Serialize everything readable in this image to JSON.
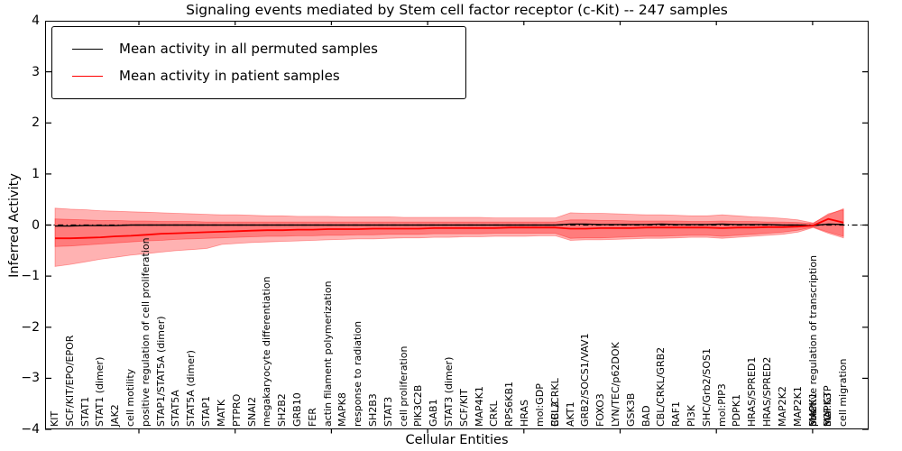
{
  "title": "Signaling events mediated by Stem cell factor receptor (c-Kit) -- 247 samples",
  "axes": {
    "ylabel": "Inferred Activity",
    "xlabel": "Cellular Entities",
    "ytick_labels": [
      "4",
      "3",
      "2",
      "1",
      "0",
      "−1",
      "−2",
      "−3",
      "−4"
    ],
    "ylim": [
      -4,
      4
    ]
  },
  "legend": {
    "items": [
      {
        "label": "Mean activity in all permuted samples",
        "color": "#000000"
      },
      {
        "label": "Mean activity in patient samples",
        "color": "#ff0000"
      }
    ]
  },
  "colors": {
    "band_fill": "rgba(255,0,0,0.30)",
    "band_edge": "rgba(255,0,0,0.35)",
    "permuted_line": "#000000",
    "patient_line": "#ff0000",
    "zero_line": "#000000",
    "frame": "#000000"
  },
  "chart_data": {
    "type": "line",
    "title": "Signaling events mediated by Stem cell factor receptor (c-Kit) -- 247 samples",
    "xlabel": "Cellular Entities",
    "ylabel": "Inferred Activity",
    "ylim": [
      -4,
      4
    ],
    "yticks": [
      4,
      3,
      2,
      1,
      0,
      -1,
      -2,
      -3,
      -4
    ],
    "zero_line_style": "dash-dot",
    "legend_position": "upper left",
    "x_entities": [
      [
        "KIT"
      ],
      [
        "SCF/KIT/EPO/EPOR"
      ],
      [
        "STAT1"
      ],
      [
        "STAT1 (dimer)"
      ],
      [
        "JAK2"
      ],
      [
        "cell motility"
      ],
      [
        "positive regulation of cell proliferation"
      ],
      [
        "STAP1/STAT5A (dimer)"
      ],
      [
        "STAT5A"
      ],
      [
        "STAT5A (dimer)"
      ],
      [
        "STAP1"
      ],
      [
        "MATK"
      ],
      [
        "PTPRO"
      ],
      [
        "SNAI2"
      ],
      [
        "megakaryocyte differentiation"
      ],
      [
        "SH2B2"
      ],
      [
        "GRB10"
      ],
      [
        "FER"
      ],
      [
        "actin filament polymerization"
      ],
      [
        "MAPK8"
      ],
      [
        "response to radiation"
      ],
      [
        "SH2B3"
      ],
      [
        "STAT3"
      ],
      [
        "cell proliferation"
      ],
      [
        "PIK3C2B"
      ],
      [
        "GAB1"
      ],
      [
        "STAT3 (dimer)"
      ],
      [
        "SCF/KIT"
      ],
      [
        "MAP4K1"
      ],
      [
        "CRKL"
      ],
      [
        "RPS6KB1"
      ],
      [
        "HRAS"
      ],
      [
        "mol:GDP"
      ],
      [
        "CBL/CRKL",
        "BCL2"
      ],
      [
        "AKT1"
      ],
      [
        "GRB2/SOCS1/VAV1"
      ],
      [
        "FOXO3"
      ],
      [
        "LYN/TEC/p62DOK"
      ],
      [
        "GSK3B"
      ],
      [
        "BAD"
      ],
      [
        "CBL/CRKL/GRB2"
      ],
      [
        "RAF1"
      ],
      [
        "PI3K"
      ],
      [
        "SHC/Grb2/SOS1"
      ],
      [
        "mol:PIP3"
      ],
      [
        "PDPK1"
      ],
      [
        "HRAS/SPRED1"
      ],
      [
        "HRAS/SPRED2"
      ],
      [
        "MAP2K2"
      ],
      [
        "MAP2K1"
      ],
      [
        "positive regulation of transcription",
        "MAPK1",
        "SHC"
      ],
      [
        "MAPK3",
        "mol:GTP",
        "SCF"
      ],
      [
        "cell migration"
      ]
    ],
    "series": [
      {
        "name": "Mean activity in all permuted samples",
        "color": "#000000",
        "values": [
          -0.02,
          -0.02,
          -0.01,
          -0.01,
          -0.01,
          0,
          0,
          0,
          0,
          0,
          0,
          0,
          0,
          0,
          0,
          0,
          0,
          0,
          0,
          0,
          0,
          0,
          0,
          0,
          0,
          0,
          0,
          0,
          0,
          0,
          0,
          0,
          0,
          0,
          0.02,
          0.02,
          0.01,
          0.01,
          0.01,
          0.01,
          0.02,
          0.01,
          0.01,
          0.01,
          0.02,
          0.01,
          0.01,
          0.01,
          0,
          0,
          -0.01,
          0.02,
          0.01
        ]
      },
      {
        "name": "Mean activity in patient samples",
        "color": "#ff0000",
        "values": [
          -0.26,
          -0.26,
          -0.25,
          -0.24,
          -0.22,
          -0.21,
          -0.19,
          -0.17,
          -0.16,
          -0.15,
          -0.14,
          -0.13,
          -0.12,
          -0.11,
          -0.1,
          -0.1,
          -0.09,
          -0.09,
          -0.08,
          -0.08,
          -0.08,
          -0.07,
          -0.07,
          -0.07,
          -0.07,
          -0.06,
          -0.06,
          -0.06,
          -0.06,
          -0.06,
          -0.05,
          -0.05,
          -0.05,
          -0.05,
          -0.07,
          -0.07,
          -0.06,
          -0.06,
          -0.06,
          -0.05,
          -0.05,
          -0.05,
          -0.05,
          -0.05,
          -0.06,
          -0.05,
          -0.05,
          -0.04,
          -0.04,
          -0.03,
          -0.01,
          0.12,
          0.05
        ]
      }
    ],
    "bands": [
      {
        "name": "permuted-activity-band",
        "top": [
          0.33,
          0.31,
          0.3,
          0.28,
          0.27,
          0.26,
          0.25,
          0.24,
          0.23,
          0.22,
          0.21,
          0.2,
          0.2,
          0.19,
          0.18,
          0.18,
          0.17,
          0.17,
          0.17,
          0.16,
          0.16,
          0.16,
          0.16,
          0.15,
          0.15,
          0.15,
          0.15,
          0.15,
          0.15,
          0.14,
          0.14,
          0.14,
          0.14,
          0.14,
          0.24,
          0.23,
          0.23,
          0.22,
          0.21,
          0.2,
          0.2,
          0.19,
          0.18,
          0.18,
          0.2,
          0.18,
          0.16,
          0.15,
          0.13,
          0.1,
          0.04,
          0.2,
          0.32
        ],
        "bottom": [
          -0.42,
          -0.41,
          -0.39,
          -0.37,
          -0.35,
          -0.33,
          -0.31,
          -0.3,
          -0.28,
          -0.27,
          -0.26,
          -0.25,
          -0.24,
          -0.23,
          -0.22,
          -0.22,
          -0.21,
          -0.21,
          -0.2,
          -0.2,
          -0.19,
          -0.19,
          -0.18,
          -0.18,
          -0.18,
          -0.17,
          -0.17,
          -0.17,
          -0.17,
          -0.16,
          -0.16,
          -0.16,
          -0.16,
          -0.16,
          -0.26,
          -0.25,
          -0.25,
          -0.24,
          -0.23,
          -0.22,
          -0.22,
          -0.21,
          -0.2,
          -0.2,
          -0.22,
          -0.2,
          -0.18,
          -0.16,
          -0.14,
          -0.1,
          -0.04,
          -0.14,
          -0.22
        ]
      },
      {
        "name": "patient-activity-band",
        "top": [
          0.12,
          0.11,
          0.1,
          0.09,
          0.09,
          0.08,
          0.08,
          0.07,
          0.07,
          0.07,
          0.06,
          0.06,
          0.06,
          0.06,
          0.06,
          0.06,
          0.06,
          0.06,
          0.06,
          0.06,
          0.06,
          0.06,
          0.06,
          0.06,
          0.06,
          0.06,
          0.06,
          0.06,
          0.06,
          0.06,
          0.06,
          0.06,
          0.06,
          0.06,
          0.1,
          0.1,
          0.09,
          0.09,
          0.08,
          0.08,
          0.08,
          0.08,
          0.07,
          0.07,
          0.08,
          0.07,
          0.07,
          0.06,
          0.06,
          0.05,
          0.03,
          0.22,
          0.3
        ],
        "bottom": [
          -0.81,
          -0.77,
          -0.72,
          -0.67,
          -0.63,
          -0.59,
          -0.56,
          -0.53,
          -0.5,
          -0.48,
          -0.46,
          -0.38,
          -0.36,
          -0.34,
          -0.33,
          -0.32,
          -0.31,
          -0.3,
          -0.29,
          -0.28,
          -0.27,
          -0.27,
          -0.26,
          -0.25,
          -0.25,
          -0.24,
          -0.24,
          -0.23,
          -0.23,
          -0.22,
          -0.22,
          -0.22,
          -0.21,
          -0.21,
          -0.3,
          -0.29,
          -0.29,
          -0.28,
          -0.27,
          -0.26,
          -0.26,
          -0.25,
          -0.24,
          -0.24,
          -0.26,
          -0.24,
          -0.22,
          -0.2,
          -0.18,
          -0.14,
          -0.05,
          -0.16,
          -0.25
        ]
      }
    ]
  }
}
